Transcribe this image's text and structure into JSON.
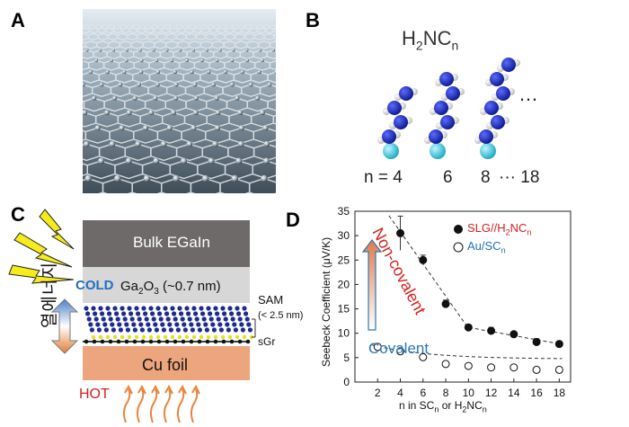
{
  "panels": {
    "a": "A",
    "b": "B",
    "c": "C",
    "d": "D"
  },
  "panelB": {
    "formula_base": "H",
    "formula_sub1": "2",
    "formula_mid": "NC",
    "formula_sub2": "n",
    "ellipsis": "…",
    "n_prefix": "n = 4",
    "n6": "6",
    "n8": "8",
    "n18": "··· 18"
  },
  "panelC": {
    "bulk_label": "Bulk EGaIn",
    "oxide_label_a": "Ga",
    "oxide_sub_a": "2",
    "oxide_label_b": "O",
    "oxide_sub_b": "3",
    "oxide_label_c": " (~0.7 nm)",
    "sam_label": "SAM",
    "sam_thickness": "(< 2.5 nm)",
    "sgr_label": "sGr",
    "cu_label": "Cu foil",
    "cold_label": "COLD",
    "hot_label": "HOT",
    "korean_label": "열에너지",
    "colors": {
      "bulk": "#6e6a6a",
      "oxide": "#d7d7d7",
      "cu": "#eda57d",
      "cold": "#1f6fc0",
      "hot": "#d42020",
      "lightning": "#f6ec1c"
    }
  },
  "chart_data": {
    "type": "scatter",
    "ylabel": "Seebeck Coefficient (μV/K)",
    "xlabel_parts": [
      "n in SC",
      "n",
      " or H",
      "2",
      "NC",
      "n"
    ],
    "xlim": [
      0,
      19
    ],
    "ylim": [
      0,
      35
    ],
    "xticks": [
      2,
      4,
      6,
      8,
      10,
      12,
      14,
      16,
      18
    ],
    "yticks": [
      0,
      5,
      10,
      15,
      20,
      25,
      30,
      35
    ],
    "series": [
      {
        "name": "SLG//H2NCn",
        "marker": "filled-circle",
        "x": [
          4,
          6,
          8,
          10,
          12,
          14,
          16,
          18
        ],
        "y": [
          30.5,
          25.0,
          16.0,
          11.2,
          10.5,
          9.8,
          8.2,
          7.8
        ],
        "err": [
          3.5,
          1.0,
          0.8,
          0.5,
          0.7,
          0.5,
          0.7,
          0.5
        ]
      },
      {
        "name": "Au/SCn",
        "marker": "open-circle",
        "x": [
          2,
          4,
          6,
          8,
          10,
          12,
          14,
          16,
          18
        ],
        "y": [
          7.2,
          6.3,
          5.1,
          3.7,
          3.3,
          3.0,
          3.0,
          2.5,
          2.5
        ],
        "err": [
          0.5,
          0.4,
          0.4,
          0.3,
          0.3,
          0.3,
          0.3,
          0.3,
          0.3
        ]
      }
    ],
    "legend": [
      {
        "text_a": "SLG//H",
        "sub_a": "2",
        "text_b": "NC",
        "sub_b": "n",
        "color": "#d42020"
      },
      {
        "text_a": "Au/SC",
        "sub_a": "n",
        "color": "#1f6fc0"
      }
    ],
    "annotations": {
      "non_covalent": "Non-covalent",
      "covalent": "Covalent"
    },
    "colors": {
      "noncov": "#d42020",
      "cov": "#2a79b6"
    }
  }
}
